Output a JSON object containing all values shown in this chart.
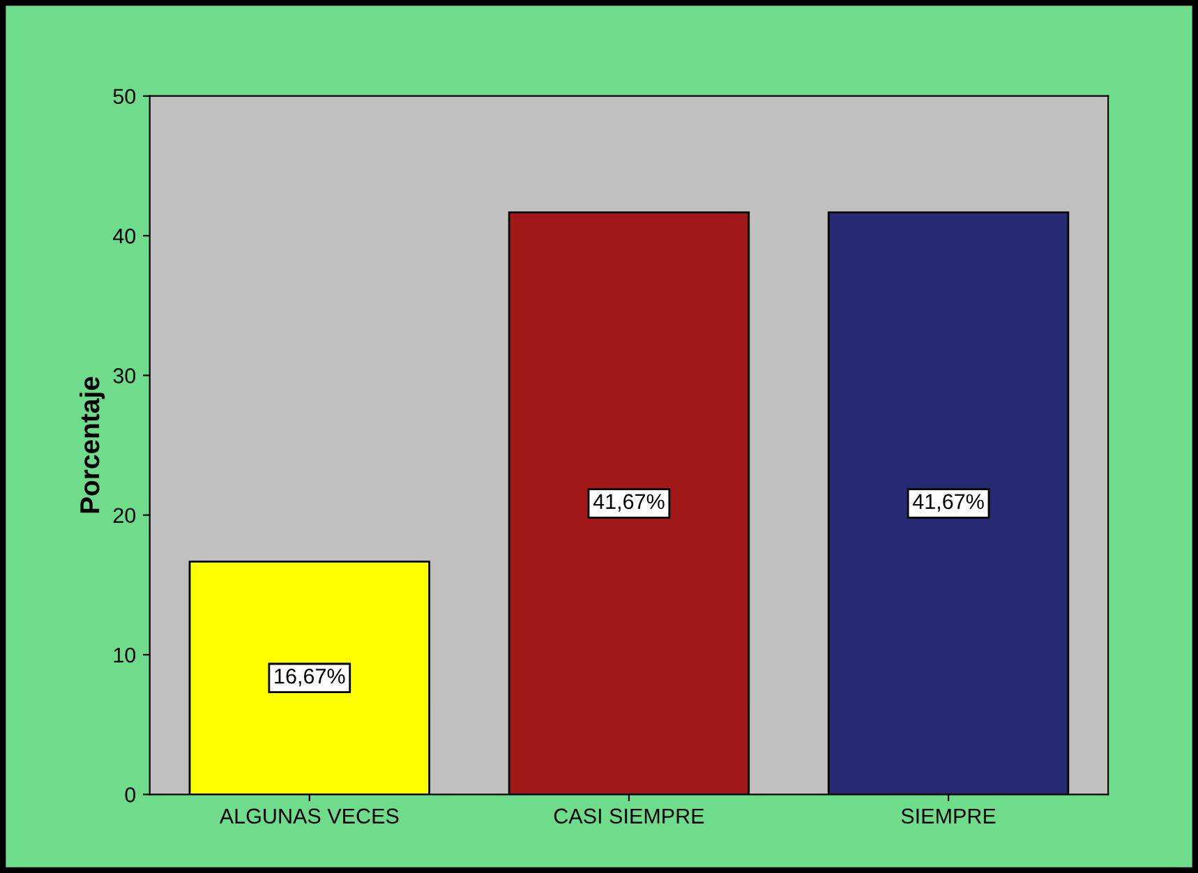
{
  "chart_data": {
    "type": "bar",
    "ylabel": "Porcentaje",
    "categories": [
      "ALGUNAS VECES",
      "CASI SIEMPRE",
      "SIEMPRE"
    ],
    "values": [
      16.67,
      41.67,
      41.67
    ],
    "colors": [
      "#ffff00",
      "#a01818",
      "#272a73"
    ],
    "value_labels": [
      "16,67%",
      "41,67%",
      "41,67%"
    ],
    "ylim": [
      0,
      50
    ],
    "yticks": [
      0,
      10,
      20,
      30,
      40,
      50
    ],
    "grid": false,
    "legend": false
  }
}
